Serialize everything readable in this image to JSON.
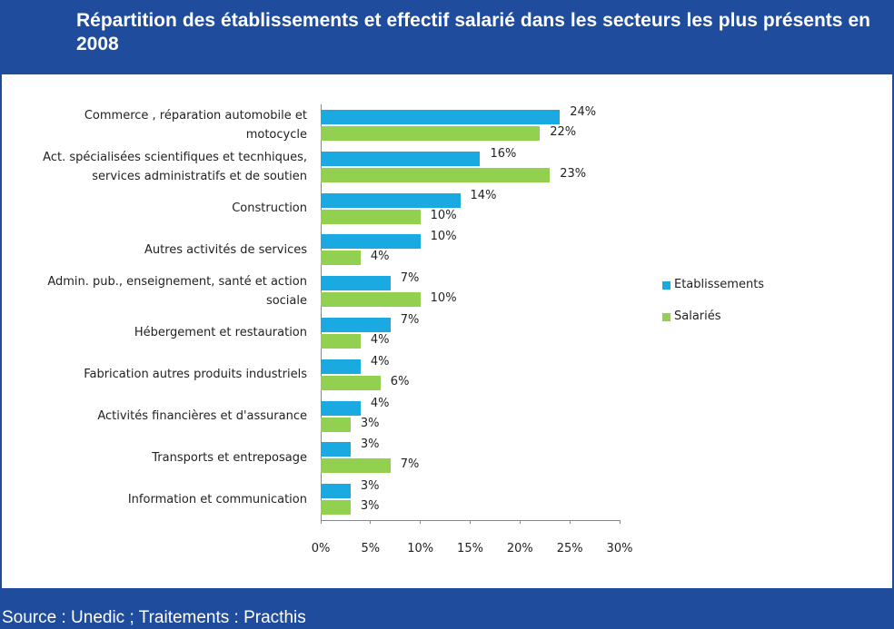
{
  "chart_data": {
    "type": "bar",
    "title": "Répartition des établissements et effectif salarié dans les secteurs les plus présents en 2008",
    "source": "Source : Unedic ; Traitements : Practhis",
    "categories": [
      "Commerce , réparation automobile et motocycle",
      "Act. spécialisées scientifiques et tecnhiques, services administratifs et de soutien",
      "Construction",
      "Autres activités de services",
      "Admin. pub., enseignement, santé et action sociale",
      "Hébergement et restauration",
      "Fabrication autres produits industriels",
      "Activités financières et d'assurance",
      "Transports et entreposage",
      "Information et communication"
    ],
    "series": [
      {
        "name": "Etablissements",
        "color": "#1aa9e0",
        "values": [
          24,
          16,
          14,
          10,
          7,
          7,
          4,
          4,
          3,
          3
        ],
        "value_labels": [
          "24%",
          "16%",
          "14%",
          "10%",
          "7%",
          "7%",
          "4%",
          "4%",
          "3%",
          "3%"
        ]
      },
      {
        "name": "Salariés",
        "color": "#92d050",
        "values": [
          22,
          23,
          10,
          4,
          10,
          4,
          6,
          3,
          7,
          3
        ],
        "value_labels": [
          "22%",
          "23%",
          "10%",
          "4%",
          "10%",
          "4%",
          "6%",
          "3%",
          "7%",
          "3%"
        ]
      }
    ],
    "xlim": [
      0,
      30
    ],
    "xticks": [
      {
        "value": 0,
        "label": "0%"
      },
      {
        "value": 5,
        "label": "5%"
      },
      {
        "value": 10,
        "label": "10%"
      },
      {
        "value": 15,
        "label": "15%"
      },
      {
        "value": 20,
        "label": "20%"
      },
      {
        "value": 25,
        "label": "25%"
      },
      {
        "value": 30,
        "label": "30%"
      }
    ],
    "legend": "right"
  }
}
